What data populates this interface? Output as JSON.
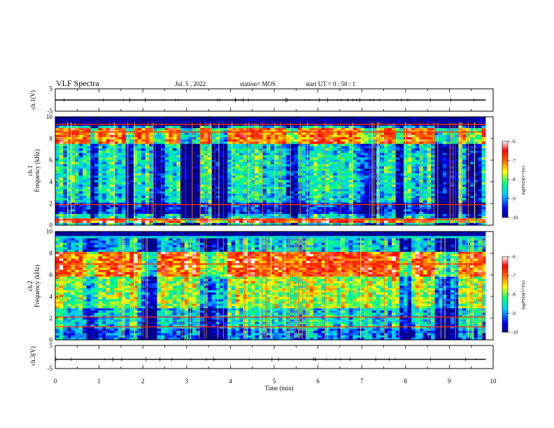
{
  "header": {
    "title": "VLF Spectra",
    "date": "Jul. 5 , 2022",
    "station": "station= MOS",
    "start": "start  UT =  0 : 50 : 1"
  },
  "colorbar": {
    "label": "log(PSD)(V²/Hz)",
    "ticks": [
      "-6",
      "-7",
      "-8",
      "-9",
      "-10"
    ],
    "range": [
      -10,
      -6
    ],
    "colors": [
      "#00008a",
      "#0000ff",
      "#00c8ff",
      "#00ff80",
      "#ffff00",
      "#ff6000",
      "#ff0000",
      "#ffffff"
    ]
  },
  "chart_data": [
    {
      "type": "line",
      "name": "ch.1 waveform",
      "ylabel": "ch.1(V)",
      "ylim": [
        -5,
        5
      ],
      "y_ticks": [
        "5",
        "-5"
      ],
      "xlim": [
        0,
        10
      ],
      "values_approx": 0
    },
    {
      "type": "heatmap",
      "name": "ch.1 spectrogram",
      "ylabel": "ch.1 Frequency (kHz)",
      "ylabel_line1": "ch.1",
      "ylabel_line2": "Frequency (kHz)",
      "ylim": [
        0,
        10
      ],
      "y_ticks": [
        "0",
        "2",
        "4",
        "6",
        "8",
        "10"
      ],
      "xlim": [
        0,
        9.83
      ],
      "bands": [
        {
          "freq_kHz": [
            9.2,
            10
          ],
          "log_psd": -10
        },
        {
          "freq_kHz": [
            7.6,
            9.0
          ],
          "log_psd": -7
        },
        {
          "freq_kHz": [
            3.0,
            6.5
          ],
          "log_psd": -8.5
        },
        {
          "freq_kHz": [
            1.0,
            2.0
          ],
          "log_psd": -9.5
        },
        {
          "freq_kHz": [
            0.2,
            0.6
          ],
          "log_psd": -6.5
        }
      ],
      "lines_kHz": [
        0.5,
        1.9,
        8.6,
        9.3
      ]
    },
    {
      "type": "heatmap",
      "name": "ch.2 spectrogram",
      "ylabel": "ch.2 Frequency (kHz)",
      "ylabel_line1": "ch.2",
      "ylabel_line2": "Frequency (kHz)",
      "ylim": [
        0,
        10
      ],
      "y_ticks": [
        "0",
        "2",
        "4",
        "6",
        "8",
        "10"
      ],
      "xlim": [
        0,
        9.83
      ],
      "bands": [
        {
          "freq_kHz": [
            9.6,
            10
          ],
          "log_psd": -10
        },
        {
          "freq_kHz": [
            5.8,
            8.2
          ],
          "log_psd": -6.8
        },
        {
          "freq_kHz": [
            3.0,
            5.8
          ],
          "log_psd": -7.8
        },
        {
          "freq_kHz": [
            1.0,
            2.6
          ],
          "log_psd": -8.5
        },
        {
          "freq_kHz": [
            0,
            1.0
          ],
          "log_psd": -9
        }
      ],
      "lines_kHz": [
        1.2,
        2.1,
        7.0
      ]
    },
    {
      "type": "line",
      "name": "ch.3 waveform",
      "ylabel": "ch.3(V)",
      "ylim": [
        -5,
        5
      ],
      "y_ticks": [
        "5",
        "-5"
      ],
      "xlim": [
        0,
        10
      ],
      "values_approx": -1
    }
  ],
  "x_axis": {
    "label": "Time  (min)",
    "ticks": [
      "0",
      "1",
      "2",
      "3",
      "4",
      "5",
      "6",
      "7",
      "8",
      "9",
      "10"
    ],
    "range": [
      0,
      10
    ]
  }
}
